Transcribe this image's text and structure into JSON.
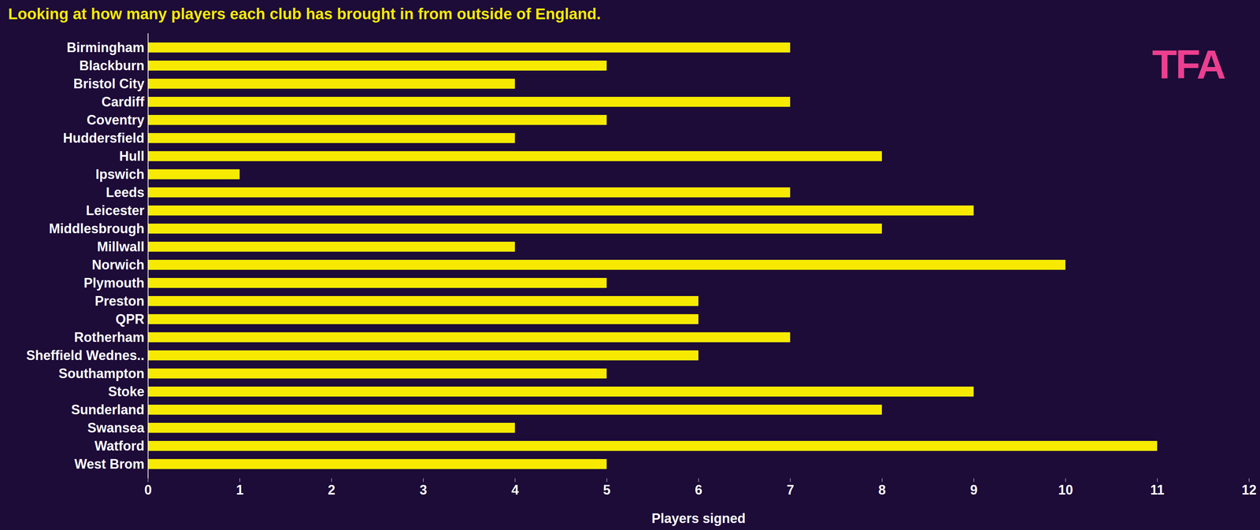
{
  "chart_data": {
    "type": "bar",
    "orientation": "horizontal",
    "title": "Looking at how many players each club has brought in from outside of England.",
    "annotations": [
      "TFA"
    ],
    "x_label": "Players signed",
    "categories": [
      "Birmingham",
      "Blackburn",
      "Bristol City",
      "Cardiff",
      "Coventry",
      "Huddersfield",
      "Hull",
      "Ipswich",
      "Leeds",
      "Leicester",
      "Middlesbrough",
      "Millwall",
      "Norwich",
      "Plymouth",
      "Preston",
      "QPR",
      "Rotherham",
      "Sheffield Wednes..",
      "Southampton",
      "Stoke",
      "Sunderland",
      "Swansea",
      "Watford",
      "West Brom"
    ],
    "values": [
      7,
      5,
      4,
      7,
      5,
      4,
      8,
      1,
      7,
      9,
      8,
      4,
      10,
      5,
      6,
      6,
      7,
      6,
      5,
      9,
      8,
      4,
      11,
      5
    ],
    "color": "#f7ea00",
    "xlim": [
      0,
      12
    ],
    "xticks": [
      0,
      1,
      2,
      3,
      4,
      5,
      6,
      7,
      8,
      9,
      10,
      11,
      12
    ],
    "grid": false
  }
}
